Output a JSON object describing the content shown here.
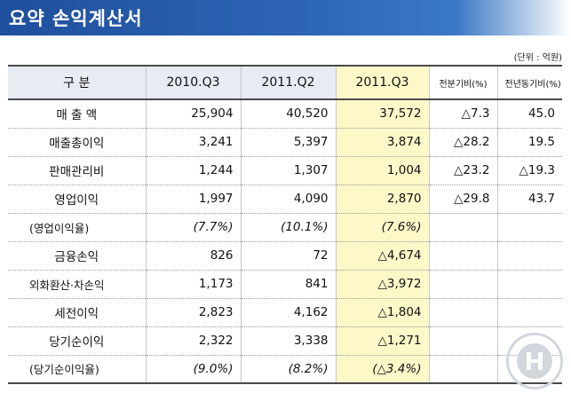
{
  "title": "요약 손익계산서",
  "unit": "(단위 : 억원)",
  "columns": [
    "구    분",
    "2010.Q3",
    "2011.Q2",
    "2011.Q3",
    "전분기비(%)",
    "전년동기비(%)"
  ],
  "rows": [
    {
      "label": "매 출 액",
      "v2010q3": "25,904",
      "v2011q2": "40,520",
      "v2011q3": "37,572",
      "qoq": "△7.3",
      "yoy": "45.0"
    },
    {
      "label": "매출총이익",
      "v2010q3": "3,241",
      "v2011q2": "5,397",
      "v2011q3": "3,874",
      "qoq": "△28.2",
      "yoy": "19.5"
    },
    {
      "label": "판매관리비",
      "v2010q3": "1,244",
      "v2011q2": "1,307",
      "v2011q3": "1,004",
      "qoq": "△23.2",
      "yoy": "△19.3"
    },
    {
      "label": "영업이익",
      "v2010q3": "1,997",
      "v2011q2": "4,090",
      "v2011q3": "2,870",
      "qoq": "△29.8",
      "yoy": "43.7"
    },
    {
      "label": "(영업이익율)",
      "v2010q3": "(7.7%)",
      "v2011q2": "(10.1%)",
      "v2011q3": "(7.6%)",
      "qoq": "",
      "yoy": ""
    },
    {
      "label": "금융손익",
      "v2010q3": "826",
      "v2011q2": "72",
      "v2011q3": "△4,674",
      "qoq": "",
      "yoy": ""
    },
    {
      "label": "외화환산·차손익",
      "v2010q3": "1,173",
      "v2011q2": "841",
      "v2011q3": "△3,972",
      "qoq": "",
      "yoy": ""
    },
    {
      "label": "세전이익",
      "v2010q3": "2,823",
      "v2011q2": "4,162",
      "v2011q3": "△1,804",
      "qoq": "",
      "yoy": ""
    },
    {
      "label": "당기순이익",
      "v2010q3": "2,322",
      "v2011q2": "3,338",
      "v2011q3": "△1,271",
      "qoq": "",
      "yoy": ""
    },
    {
      "label": "(당기순이익율)",
      "v2010q3": "(9.0%)",
      "v2011q2": "(8.2%)",
      "v2011q3": "(△3.4%)",
      "qoq": "",
      "yoy": ""
    }
  ],
  "colors": {
    "title_bar": "#2d66b5",
    "header_bg": "#e7ebf3",
    "highlight": "#fdf8c8"
  },
  "icons": [
    "company-emblem-icon"
  ]
}
